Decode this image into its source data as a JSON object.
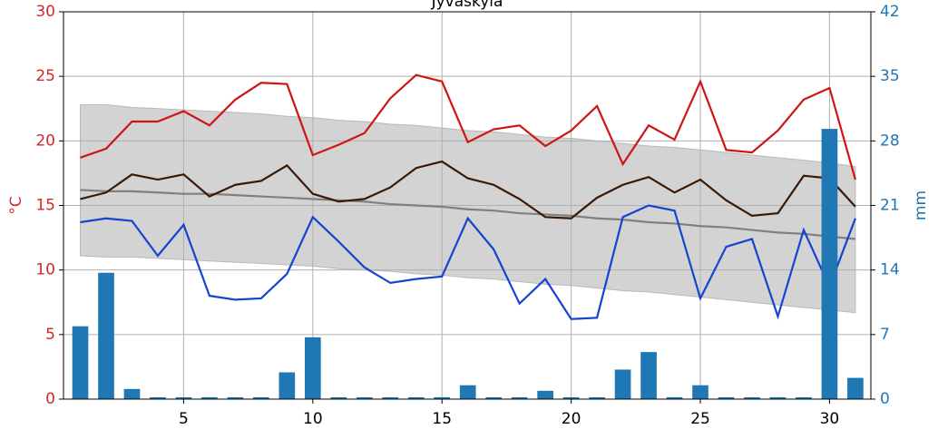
{
  "chart_data": {
    "type": "line",
    "title": "Jyväskylä",
    "ylabel": "°C",
    "y2label": "mm",
    "x": [
      1,
      2,
      3,
      4,
      5,
      6,
      7,
      8,
      9,
      10,
      11,
      12,
      13,
      14,
      15,
      16,
      17,
      18,
      19,
      20,
      21,
      22,
      23,
      24,
      25,
      26,
      27,
      28,
      29,
      30,
      31
    ],
    "xlim": [
      0.35,
      31.6
    ],
    "xticks": [
      5,
      10,
      15,
      20,
      25,
      30
    ],
    "ylim": [
      0,
      30
    ],
    "yticks": [
      0,
      5,
      10,
      15,
      20,
      25,
      30
    ],
    "y2lim": [
      0,
      42
    ],
    "y2ticks": [
      0,
      7,
      14,
      21,
      28,
      35,
      42
    ],
    "grid": true,
    "ycolor": "#d62728",
    "y2color": "#1f77b4",
    "band": {
      "color": "#d3d3d3",
      "upper": [
        22.8,
        22.8,
        22.6,
        22.5,
        22.4,
        22.3,
        22.2,
        22.1,
        21.9,
        21.8,
        21.6,
        21.5,
        21.3,
        21.2,
        21.0,
        20.8,
        20.7,
        20.5,
        20.3,
        20.2,
        20.0,
        19.8,
        19.6,
        19.5,
        19.3,
        19.1,
        18.9,
        18.7,
        18.5,
        18.3,
        18.0
      ],
      "lower": [
        11.1,
        11.0,
        11.0,
        10.9,
        10.8,
        10.7,
        10.6,
        10.5,
        10.4,
        10.3,
        10.1,
        10.0,
        9.9,
        9.7,
        9.6,
        9.4,
        9.3,
        9.1,
        8.9,
        8.8,
        8.6,
        8.4,
        8.3,
        8.1,
        7.9,
        7.7,
        7.5,
        7.3,
        7.1,
        6.9,
        6.7
      ]
    },
    "series": [
      {
        "color": "#808080",
        "values": [
          16.2,
          16.1,
          16.1,
          16.0,
          15.9,
          15.9,
          15.8,
          15.7,
          15.6,
          15.5,
          15.4,
          15.3,
          15.1,
          15.0,
          14.9,
          14.7,
          14.6,
          14.4,
          14.3,
          14.2,
          14.0,
          13.9,
          13.7,
          13.6,
          13.4,
          13.3,
          13.1,
          12.9,
          12.8,
          12.6,
          12.4
        ]
      },
      {
        "color": "#d01414",
        "values": [
          18.7,
          19.4,
          21.5,
          21.5,
          22.3,
          21.2,
          23.2,
          24.5,
          24.4,
          18.9,
          19.7,
          20.6,
          23.3,
          25.1,
          24.6,
          19.9,
          20.9,
          21.2,
          19.6,
          20.8,
          22.7,
          18.2,
          21.2,
          20.1,
          24.6,
          19.3,
          19.1,
          20.8,
          23.2,
          24.1,
          17.0
        ]
      },
      {
        "color": "#3a1a05",
        "values": [
          15.5,
          16.0,
          17.4,
          17.0,
          17.4,
          15.7,
          16.6,
          16.9,
          18.1,
          15.9,
          15.3,
          15.5,
          16.4,
          17.9,
          18.4,
          17.1,
          16.6,
          15.5,
          14.1,
          14.0,
          15.6,
          16.6,
          17.2,
          16.0,
          17.0,
          15.4,
          14.2,
          14.4,
          17.3,
          17.1,
          14.9
        ]
      },
      {
        "color": "#1444d0",
        "values": [
          13.7,
          14.0,
          13.8,
          11.1,
          13.5,
          8.0,
          7.7,
          7.8,
          9.7,
          14.1,
          12.2,
          10.2,
          9.0,
          9.3,
          9.5,
          14.0,
          11.6,
          7.4,
          9.3,
          6.2,
          6.3,
          14.1,
          15.0,
          14.6,
          7.8,
          11.8,
          12.4,
          6.4,
          13.1,
          8.7,
          14.0
        ]
      },
      {
        "type": "bar",
        "axis": "y2",
        "color": "#1f77b4",
        "values": [
          7.9,
          13.7,
          1.1,
          0.2,
          0.2,
          0.2,
          0.2,
          0.2,
          2.9,
          6.7,
          0.2,
          0.2,
          0.2,
          0.2,
          0.2,
          1.5,
          0.2,
          0.2,
          0.9,
          0.2,
          0.2,
          3.2,
          5.1,
          0.2,
          1.5,
          0.2,
          0.2,
          0.2,
          0.2,
          29.3,
          2.3
        ]
      }
    ]
  }
}
